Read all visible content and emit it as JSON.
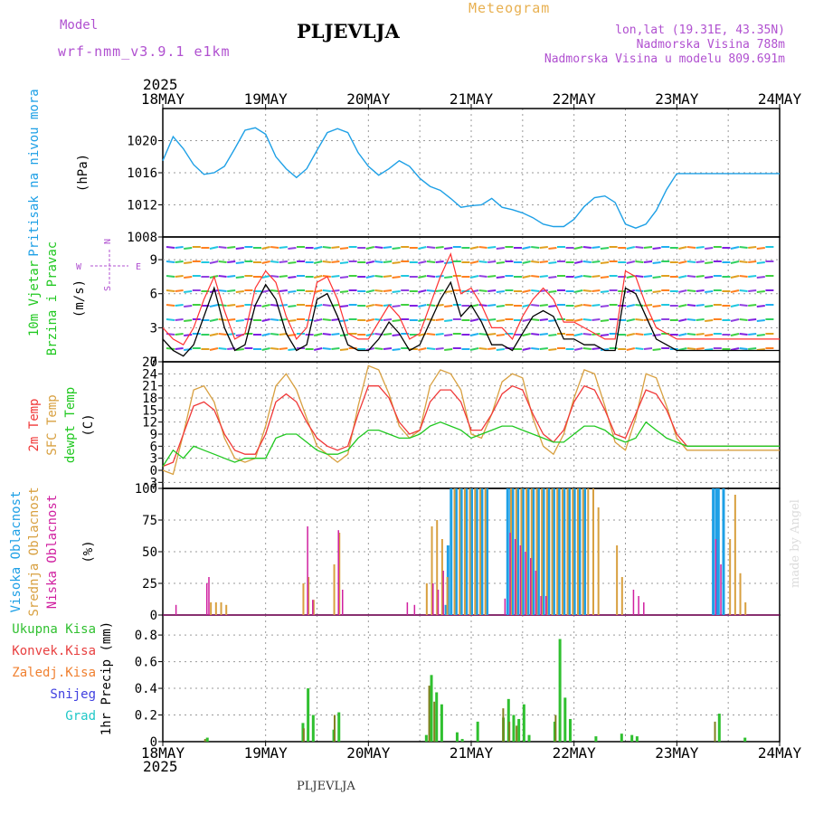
{
  "header": {
    "model_label": "Model",
    "model_name": "wrf-nmm_v3.9.1  e1km",
    "station": "PLJEVLJA",
    "meteogram": "Meteogram",
    "coords": "lon,lat (19.31E, 43.35N)",
    "altitude": "Nadmorska Visina 788m",
    "model_altitude": "Nadmorska Visina u modelu 809.691m",
    "year_top": "2025",
    "year_bottom": "2025",
    "footer_station": "PLJEVLJA",
    "credit": "made by Angel"
  },
  "colors": {
    "pressure": "#1ea0e6",
    "wind_speed": "#000000",
    "gust": "#ff3030",
    "temp2m": "#f03838",
    "sfc_temp": "#d8a040",
    "dewpoint": "#20c820",
    "high_cloud": "#1ea0e6",
    "mid_cloud": "#d8a040",
    "low_cloud": "#d020a0",
    "total_precip": "#30c030",
    "conv_precip": "#e84040",
    "frozen_precip": "#f08030",
    "snow": "#4040e0",
    "hail": "#20c8c8",
    "grid": "#9a9a9a",
    "purple_text": "#b050d0",
    "orange_text": "#e8b050"
  },
  "chart_data": [
    {
      "type": "line",
      "name": "pressure",
      "ylabel_1": "Pritisak na nivou mora",
      "ylabel_2": "(hPa)",
      "ylim": [
        1008,
        1024
      ],
      "yticks": [
        "1008",
        "1012",
        "1016",
        "1020"
      ],
      "x_days": [
        0,
        0.1,
        0.2,
        0.3,
        0.4,
        0.5,
        0.6,
        0.7,
        0.8,
        0.9,
        1.0,
        1.1,
        1.2,
        1.3,
        1.4,
        1.5,
        1.6,
        1.7,
        1.8,
        1.9,
        2.0,
        2.1,
        2.2,
        2.3,
        2.4,
        2.5,
        2.6,
        2.7,
        2.8,
        2.9,
        3.0,
        3.1,
        3.2,
        3.3,
        3.4,
        3.5,
        3.6,
        3.7,
        3.8,
        3.9,
        4.0,
        4.1,
        4.2,
        4.3,
        4.4,
        4.5,
        4.6,
        4.7,
        4.8,
        4.9,
        5.0,
        5.1,
        5.2,
        5.3,
        5.4,
        5.5,
        5.6,
        5.7,
        5.8,
        5.9,
        6.0
      ],
      "values": [
        1017.5,
        1020.5,
        1019.0,
        1017.0,
        1015.8,
        1016.0,
        1016.8,
        1019.0,
        1021.3,
        1021.6,
        1020.8,
        1018.0,
        1016.5,
        1015.4,
        1016.5,
        1018.8,
        1021.0,
        1021.5,
        1021.0,
        1018.5,
        1016.8,
        1015.7,
        1016.5,
        1017.5,
        1016.8,
        1015.3,
        1014.3,
        1013.8,
        1012.8,
        1011.7,
        1011.9,
        1012.0,
        1012.8,
        1011.7,
        1011.4,
        1011.0,
        1010.4,
        1009.6,
        1009.3,
        1009.3,
        1010.2,
        1011.8,
        1012.9,
        1013.1,
        1012.3,
        1009.6,
        1009.1,
        1009.6,
        1011.3,
        1013.9,
        1015.9,
        1015.9,
        1015.9,
        1015.9,
        1015.9,
        1015.9,
        1015.9,
        1015.9,
        1015.9,
        1015.9,
        1015.9
      ]
    },
    {
      "type": "line",
      "name": "wind",
      "ylabel_1": "10m Vjetar",
      "ylabel_2": "Brzina i Pravac",
      "ylabel_3": "(m/s)",
      "compass": [
        "N",
        "W",
        "E",
        "S"
      ],
      "ylim": [
        0,
        11
      ],
      "yticks": [
        "0",
        "3",
        "6",
        "9"
      ],
      "x_days": [
        0,
        0.1,
        0.2,
        0.3,
        0.4,
        0.5,
        0.6,
        0.7,
        0.8,
        0.9,
        1.0,
        1.1,
        1.2,
        1.3,
        1.4,
        1.5,
        1.6,
        1.7,
        1.8,
        1.9,
        2.0,
        2.1,
        2.2,
        2.3,
        2.4,
        2.5,
        2.6,
        2.7,
        2.8,
        2.9,
        3.0,
        3.1,
        3.2,
        3.3,
        3.4,
        3.5,
        3.6,
        3.7,
        3.8,
        3.9,
        4.0,
        4.1,
        4.2,
        4.3,
        4.4,
        4.5,
        4.6,
        4.7,
        4.8,
        4.9,
        5.0,
        5.1,
        5.2,
        5.3,
        5.4,
        5.5,
        5.6,
        5.7,
        5.8,
        5.9,
        6.0
      ],
      "speed": [
        2.0,
        1.0,
        0.5,
        1.5,
        4.0,
        6.5,
        3.0,
        1.0,
        1.5,
        5.0,
        6.8,
        5.5,
        2.5,
        1.0,
        1.5,
        5.5,
        6.0,
        4.0,
        1.5,
        1.0,
        1.0,
        2.0,
        3.5,
        2.5,
        1.0,
        1.5,
        3.5,
        5.5,
        7.0,
        4.0,
        5.0,
        3.5,
        1.5,
        1.5,
        1.0,
        2.5,
        4.0,
        4.5,
        4.0,
        2.0,
        2.0,
        1.5,
        1.5,
        1.0,
        1.0,
        6.5,
        6.0,
        4.0,
        2.0,
        1.5,
        1.0,
        1.0,
        1.0,
        1.0,
        1.0,
        1.0,
        1.0,
        1.0,
        1.0,
        1.0,
        1.0
      ],
      "gust": [
        3.0,
        2.0,
        1.5,
        3.0,
        5.5,
        7.5,
        4.5,
        2.0,
        2.5,
        6.5,
        8.0,
        7.0,
        4.0,
        2.0,
        3.0,
        7.0,
        7.5,
        5.5,
        2.5,
        2.0,
        2.0,
        3.5,
        5.0,
        4.0,
        2.0,
        2.5,
        5.0,
        7.5,
        9.5,
        6.0,
        6.5,
        5.0,
        3.0,
        3.0,
        2.0,
        4.0,
        5.5,
        6.5,
        5.5,
        3.5,
        3.5,
        3.0,
        2.5,
        2.0,
        2.0,
        8.0,
        7.5,
        5.0,
        3.0,
        2.5,
        2.0,
        2.0,
        2.0,
        2.0,
        2.0,
        2.0,
        2.0,
        2.0,
        2.0,
        2.0,
        2.0
      ]
    },
    {
      "type": "line",
      "name": "temperature",
      "ylabel_1": "2m Temp",
      "ylabel_2": "SFC Temp",
      "ylabel_3": "dewpt Temp",
      "ylabel_4": "(C)",
      "ylim": [
        -4.5,
        27
      ],
      "yticks": [
        "-3",
        "0",
        "3",
        "6",
        "9",
        "12",
        "15",
        "18",
        "21",
        "24",
        "27"
      ],
      "x_days": [
        0,
        0.1,
        0.2,
        0.3,
        0.4,
        0.5,
        0.6,
        0.7,
        0.8,
        0.9,
        1.0,
        1.1,
        1.2,
        1.3,
        1.4,
        1.5,
        1.6,
        1.7,
        1.8,
        1.9,
        2.0,
        2.1,
        2.2,
        2.3,
        2.4,
        2.5,
        2.6,
        2.7,
        2.8,
        2.9,
        3.0,
        3.1,
        3.2,
        3.3,
        3.4,
        3.5,
        3.6,
        3.7,
        3.8,
        3.9,
        4.0,
        4.1,
        4.2,
        4.3,
        4.4,
        4.5,
        4.6,
        4.7,
        4.8,
        4.9,
        5.0,
        5.1,
        5.2,
        5.3,
        5.4,
        5.5,
        5.6,
        5.7,
        5.8,
        5.9,
        6.0
      ],
      "t2m": [
        1,
        2,
        9,
        16,
        17,
        15,
        9,
        5,
        4,
        4,
        9,
        17,
        19,
        17,
        12,
        8,
        6,
        5,
        6,
        14,
        21,
        21,
        18,
        12,
        9,
        10,
        17,
        20,
        20,
        17,
        10,
        10,
        14,
        19,
        21,
        20,
        14,
        9,
        7,
        10,
        17,
        21,
        20,
        15,
        9,
        8,
        14,
        20,
        19,
        15,
        9,
        6,
        6,
        6,
        6,
        6,
        6,
        6,
        6,
        6,
        6
      ],
      "sfc": [
        0,
        -1,
        9,
        20,
        21,
        17,
        8,
        3,
        2,
        3,
        11,
        21,
        24,
        20,
        13,
        6,
        4,
        2,
        4,
        16,
        26,
        25,
        19,
        11,
        8,
        10,
        21,
        25,
        24,
        20,
        9,
        8,
        14,
        22,
        24,
        23,
        13,
        6,
        4,
        9,
        18,
        25,
        24,
        16,
        7,
        5,
        13,
        24,
        23,
        16,
        8,
        5,
        5,
        5,
        5,
        5,
        5,
        5,
        5,
        5,
        5
      ],
      "dew": [
        1,
        5,
        3,
        6,
        5,
        4,
        3,
        2,
        3,
        3,
        3,
        8,
        9,
        9,
        7,
        5,
        4,
        4,
        5,
        8,
        10,
        10,
        9,
        8,
        8,
        9,
        11,
        12,
        11,
        10,
        8,
        9,
        10,
        11,
        11,
        10,
        9,
        8,
        7,
        7,
        9,
        11,
        11,
        10,
        8,
        7,
        8,
        12,
        10,
        8,
        7,
        6,
        6,
        6,
        6,
        6,
        6,
        6,
        6,
        6,
        6
      ]
    },
    {
      "type": "bar",
      "name": "clouds",
      "ylabel_1": "Visoka Oblacnost",
      "ylabel_2": "Srednja Oblacnost",
      "ylabel_3": "Niska Oblacnost",
      "ylabel_4": "(%)",
      "ylim": [
        0,
        100
      ],
      "yticks": [
        "0",
        "25",
        "50",
        "75",
        "100"
      ],
      "high": [
        [
          2.75,
          8
        ],
        [
          2.77,
          55
        ],
        [
          2.8,
          100
        ],
        [
          2.85,
          100
        ],
        [
          2.9,
          100
        ],
        [
          2.95,
          100
        ],
        [
          3.0,
          100
        ],
        [
          3.05,
          100
        ],
        [
          3.1,
          100
        ],
        [
          3.15,
          100
        ],
        [
          3.35,
          100
        ],
        [
          3.38,
          100
        ],
        [
          3.4,
          100
        ],
        [
          3.45,
          100
        ],
        [
          3.5,
          100
        ],
        [
          3.55,
          100
        ],
        [
          3.6,
          100
        ],
        [
          3.65,
          100
        ],
        [
          3.7,
          100
        ],
        [
          3.75,
          100
        ],
        [
          3.8,
          100
        ],
        [
          3.85,
          100
        ],
        [
          3.9,
          100
        ],
        [
          3.95,
          100
        ],
        [
          4.0,
          100
        ],
        [
          4.05,
          100
        ],
        [
          4.1,
          100
        ],
        [
          5.35,
          100
        ],
        [
          5.38,
          100
        ],
        [
          5.4,
          100
        ],
        [
          5.45,
          100
        ]
      ],
      "mid": [
        [
          0.45,
          10
        ],
        [
          0.5,
          10
        ],
        [
          0.55,
          10
        ],
        [
          0.6,
          8
        ],
        [
          1.35,
          25
        ],
        [
          1.4,
          30
        ],
        [
          1.45,
          12
        ],
        [
          1.65,
          40
        ],
        [
          1.7,
          65
        ],
        [
          2.55,
          25
        ],
        [
          2.6,
          70
        ],
        [
          2.65,
          75
        ],
        [
          2.7,
          60
        ],
        [
          2.75,
          30
        ],
        [
          2.82,
          100
        ],
        [
          2.87,
          100
        ],
        [
          2.92,
          100
        ],
        [
          2.97,
          100
        ],
        [
          3.02,
          100
        ],
        [
          3.07,
          100
        ],
        [
          3.12,
          100
        ],
        [
          3.37,
          100
        ],
        [
          3.42,
          100
        ],
        [
          3.47,
          100
        ],
        [
          3.52,
          100
        ],
        [
          3.57,
          100
        ],
        [
          3.62,
          100
        ],
        [
          3.67,
          100
        ],
        [
          3.72,
          100
        ],
        [
          3.77,
          100
        ],
        [
          3.82,
          100
        ],
        [
          3.87,
          100
        ],
        [
          3.92,
          100
        ],
        [
          3.97,
          100
        ],
        [
          4.02,
          100
        ],
        [
          4.07,
          100
        ],
        [
          4.12,
          100
        ],
        [
          4.17,
          100
        ],
        [
          4.22,
          85
        ],
        [
          4.4,
          55
        ],
        [
          4.45,
          30
        ],
        [
          5.5,
          60
        ],
        [
          5.55,
          95
        ],
        [
          5.6,
          33
        ],
        [
          5.65,
          10
        ]
      ],
      "low": [
        [
          0.1,
          8
        ],
        [
          0.4,
          25
        ],
        [
          0.42,
          30
        ],
        [
          1.38,
          70
        ],
        [
          1.43,
          12
        ],
        [
          1.68,
          67
        ],
        [
          1.72,
          20
        ],
        [
          2.35,
          10
        ],
        [
          2.42,
          8
        ],
        [
          2.6,
          25
        ],
        [
          2.65,
          20
        ],
        [
          2.7,
          35
        ],
        [
          3.3,
          13
        ],
        [
          3.35,
          65
        ],
        [
          3.4,
          60
        ],
        [
          3.45,
          55
        ],
        [
          3.5,
          50
        ],
        [
          3.55,
          45
        ],
        [
          3.6,
          35
        ],
        [
          3.65,
          15
        ],
        [
          3.7,
          15
        ],
        [
          4.55,
          20
        ],
        [
          4.6,
          15
        ],
        [
          4.65,
          10
        ],
        [
          5.35,
          60
        ],
        [
          5.4,
          40
        ]
      ]
    },
    {
      "type": "bar",
      "name": "precipitation",
      "legend": [
        "Ukupna Kisa",
        "Konvek.Kisa",
        "Zaledj.Kisa",
        "Snijeg",
        "Grad"
      ],
      "ylabel": "1hr Precip (mm)",
      "ylim": [
        0,
        0.95
      ],
      "yticks": [
        "0",
        "0.2",
        "0.4",
        "0.6",
        "0.8"
      ],
      "total": [
        [
          0.42,
          0.03
        ],
        [
          1.35,
          0.14
        ],
        [
          1.4,
          0.4
        ],
        [
          1.45,
          0.2
        ],
        [
          1.65,
          0.09
        ],
        [
          1.7,
          0.22
        ],
        [
          2.55,
          0.05
        ],
        [
          2.6,
          0.5
        ],
        [
          2.65,
          0.37
        ],
        [
          2.7,
          0.28
        ],
        [
          2.85,
          0.07
        ],
        [
          2.9,
          0.02
        ],
        [
          3.05,
          0.15
        ],
        [
          3.3,
          0.18
        ],
        [
          3.35,
          0.32
        ],
        [
          3.4,
          0.2
        ],
        [
          3.45,
          0.17
        ],
        [
          3.5,
          0.28
        ],
        [
          3.55,
          0.05
        ],
        [
          3.8,
          0.15
        ],
        [
          3.85,
          0.77
        ],
        [
          3.9,
          0.33
        ],
        [
          3.95,
          0.17
        ],
        [
          4.2,
          0.04
        ],
        [
          4.45,
          0.06
        ],
        [
          4.55,
          0.05
        ],
        [
          4.6,
          0.04
        ],
        [
          5.4,
          0.21
        ],
        [
          5.65,
          0.03
        ]
      ],
      "conv": [
        [
          0.42,
          0.02
        ],
        [
          1.38,
          0.1
        ],
        [
          1.68,
          0.2
        ],
        [
          2.6,
          0.42
        ],
        [
          2.65,
          0.3
        ],
        [
          3.32,
          0.25
        ],
        [
          3.38,
          0.15
        ],
        [
          3.45,
          0.12
        ],
        [
          3.83,
          0.2
        ],
        [
          5.38,
          0.15
        ]
      ]
    }
  ],
  "x_axis": {
    "labels": [
      "18MAY",
      "19MAY",
      "20MAY",
      "21MAY",
      "22MAY",
      "23MAY",
      "24MAY"
    ]
  }
}
